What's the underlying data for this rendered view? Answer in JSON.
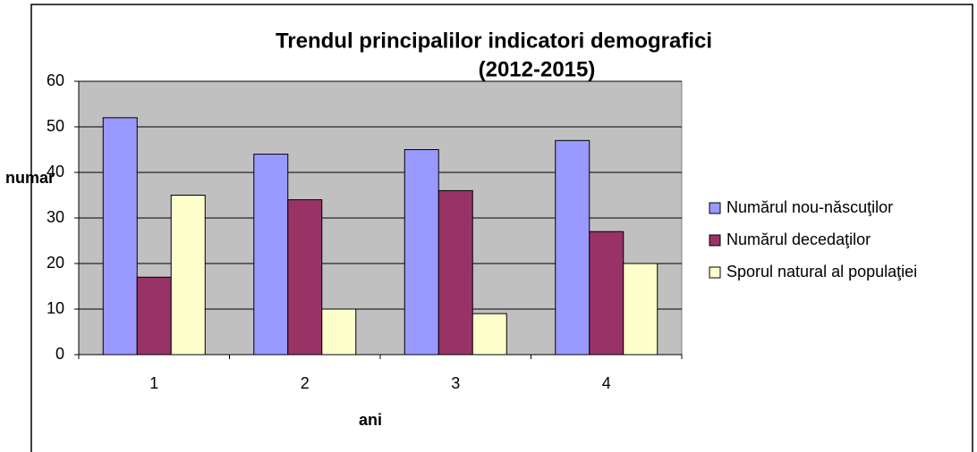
{
  "chart_data": {
    "type": "bar",
    "title": "Trendul principalilor indicatori demografici",
    "subtitle": "(2012-2015)",
    "y_label": "numar",
    "x_label": "ani",
    "categories": [
      "1",
      "2",
      "3",
      "4"
    ],
    "series": [
      {
        "name": "Numărul nou-născuţilor",
        "color": "#9999ff",
        "values": [
          52,
          44,
          45,
          47
        ]
      },
      {
        "name": "Numărul decedaţilor",
        "color": "#993366",
        "values": [
          17,
          34,
          36,
          27
        ]
      },
      {
        "name": "Sporul natural al populaţiei",
        "color": "#ffffcc",
        "values": [
          35,
          10,
          9,
          20
        ]
      }
    ],
    "ylim": [
      0,
      60
    ],
    "yticks": [
      0,
      10,
      20,
      30,
      40,
      50,
      60
    ],
    "grid": true,
    "legend": "right"
  }
}
